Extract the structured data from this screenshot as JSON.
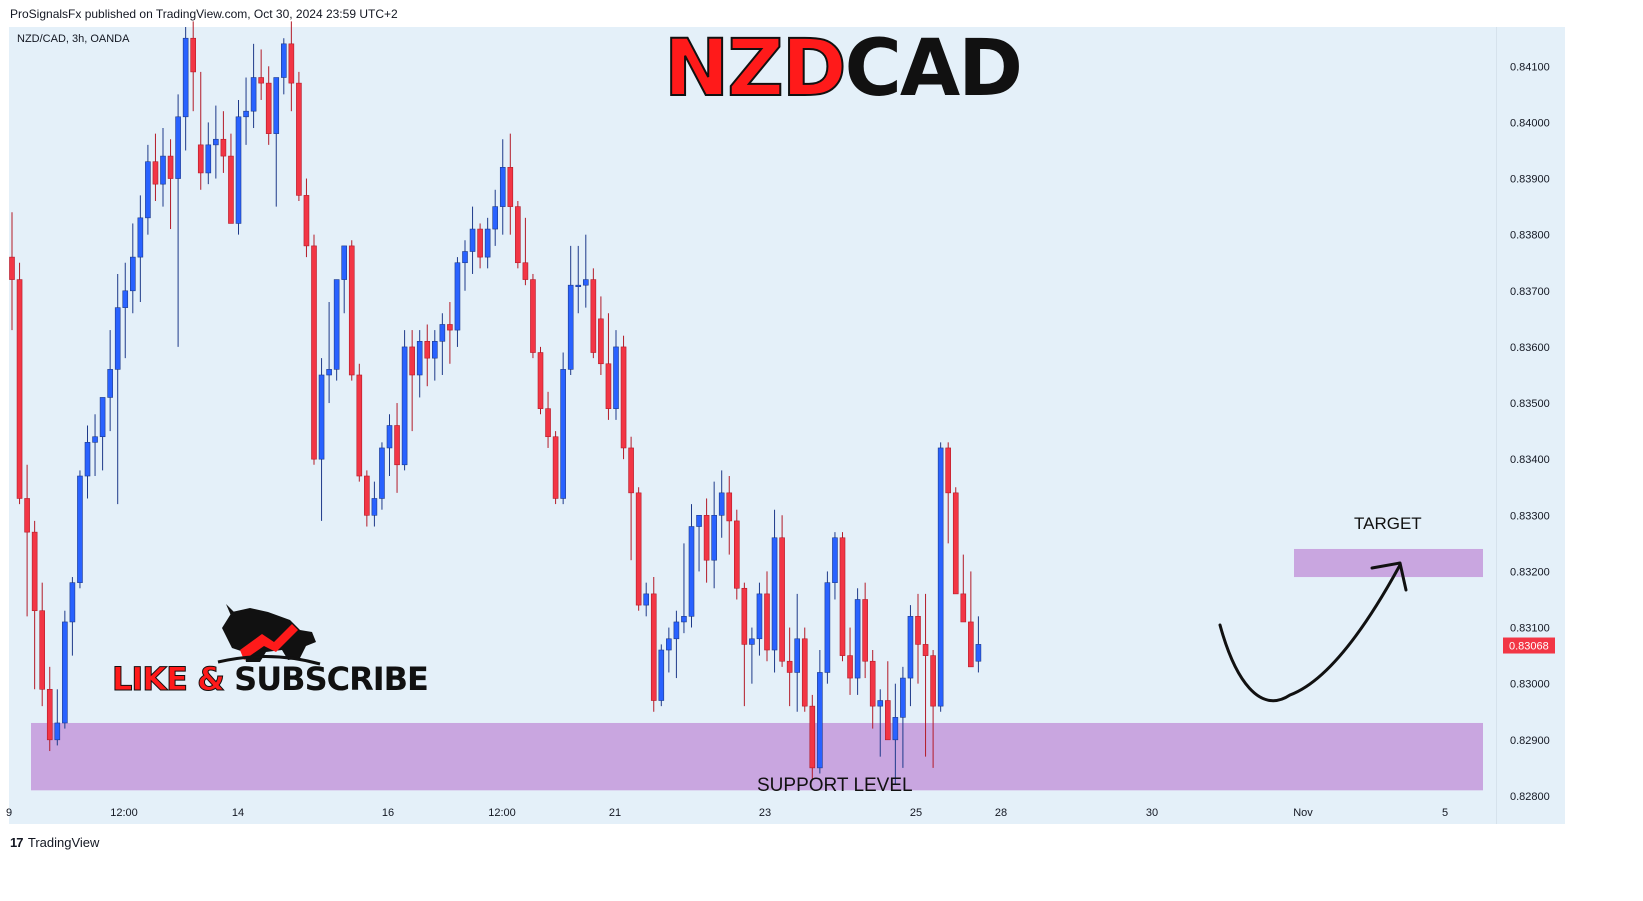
{
  "header": {
    "published": "ProSignalsFx published on TradingView.com, Oct 30, 2024 23:59 UTC+2"
  },
  "symbol_line": "NZD/CAD, 3h, OANDA",
  "title": {
    "part1": "NZD",
    "part2": "CAD"
  },
  "promo": {
    "like": "LIKE &",
    "subscribe": "SUBSCRIBE",
    "logo_icon": "bull-logo-icon"
  },
  "labels": {
    "target": "TARGET",
    "support": "SUPPORT LEVEL"
  },
  "footer": {
    "brand": "TradingView",
    "brand_icon": "tradingview-logo-icon"
  },
  "colors": {
    "up": "#2962ff",
    "down": "#f23645",
    "zone": "#c9a6e0",
    "bg": "#e4f0f9",
    "price_tag": "#f23645"
  },
  "chart_data": {
    "type": "candlestick",
    "timeframe": "3h",
    "ylim": [
      0.8275,
      0.8417
    ],
    "y_ticks": [
      "0.84100",
      "0.84000",
      "0.83900",
      "0.83800",
      "0.83700",
      "0.83600",
      "0.83500",
      "0.83400",
      "0.83300",
      "0.83200",
      "0.83100",
      "0.83000",
      "0.82900",
      "0.82800"
    ],
    "x_ticks": [
      "9",
      "12:00",
      "14",
      "16",
      "12:00",
      "21",
      "23",
      "25",
      "28",
      "30",
      "Nov",
      "5"
    ],
    "current_price": "0.83068",
    "support_zone": [
      0.8281,
      0.8293
    ],
    "target_zone": [
      0.8319,
      0.8324
    ],
    "candles": [
      [
        0.8376,
        0.8384,
        0.8363,
        0.8372
      ],
      [
        0.8372,
        0.8375,
        0.8332,
        0.8333
      ],
      [
        0.8333,
        0.8339,
        0.8312,
        0.8327
      ],
      [
        0.8327,
        0.8329,
        0.8299,
        0.8313
      ],
      [
        0.8313,
        0.8318,
        0.8296,
        0.8299
      ],
      [
        0.8299,
        0.8303,
        0.8288,
        0.829
      ],
      [
        0.829,
        0.8299,
        0.8289,
        0.8293
      ],
      [
        0.8293,
        0.8313,
        0.8292,
        0.8311
      ],
      [
        0.8311,
        0.8319,
        0.8305,
        0.8318
      ],
      [
        0.8318,
        0.8338,
        0.8317,
        0.8337
      ],
      [
        0.8337,
        0.8346,
        0.8333,
        0.8343
      ],
      [
        0.8343,
        0.8348,
        0.8337,
        0.8344
      ],
      [
        0.8344,
        0.8351,
        0.8338,
        0.8351
      ],
      [
        0.8351,
        0.8363,
        0.8345,
        0.8356
      ],
      [
        0.8356,
        0.8373,
        0.8332,
        0.8367
      ],
      [
        0.8367,
        0.8375,
        0.8358,
        0.837
      ],
      [
        0.837,
        0.8382,
        0.8366,
        0.8376
      ],
      [
        0.8376,
        0.8387,
        0.8368,
        0.8383
      ],
      [
        0.8383,
        0.8396,
        0.838,
        0.8393
      ],
      [
        0.8393,
        0.8398,
        0.8386,
        0.8389
      ],
      [
        0.8389,
        0.8399,
        0.8385,
        0.8394
      ],
      [
        0.8394,
        0.8397,
        0.8381,
        0.839
      ],
      [
        0.839,
        0.8405,
        0.836,
        0.8401
      ],
      [
        0.8401,
        0.8417,
        0.8395,
        0.8415
      ],
      [
        0.8415,
        0.8418,
        0.8402,
        0.8409
      ],
      [
        0.8396,
        0.8409,
        0.8388,
        0.8391
      ],
      [
        0.8391,
        0.84,
        0.8389,
        0.8396
      ],
      [
        0.8396,
        0.8403,
        0.839,
        0.8397
      ],
      [
        0.8397,
        0.8402,
        0.8391,
        0.8394
      ],
      [
        0.8394,
        0.8398,
        0.8382,
        0.8382
      ],
      [
        0.8382,
        0.8404,
        0.838,
        0.8401
      ],
      [
        0.8401,
        0.8408,
        0.8396,
        0.8402
      ],
      [
        0.8402,
        0.8414,
        0.8399,
        0.8408
      ],
      [
        0.8408,
        0.8413,
        0.8404,
        0.8407
      ],
      [
        0.8407,
        0.841,
        0.8396,
        0.8398
      ],
      [
        0.8398,
        0.8408,
        0.8385,
        0.8408
      ],
      [
        0.8408,
        0.8415,
        0.8405,
        0.8414
      ],
      [
        0.8414,
        0.8418,
        0.8402,
        0.8407
      ],
      [
        0.8407,
        0.8409,
        0.8386,
        0.8387
      ],
      [
        0.8387,
        0.839,
        0.8376,
        0.8378
      ],
      [
        0.8378,
        0.838,
        0.8339,
        0.834
      ],
      [
        0.834,
        0.8358,
        0.8329,
        0.8355
      ],
      [
        0.8355,
        0.8368,
        0.835,
        0.8356
      ],
      [
        0.8356,
        0.8372,
        0.8354,
        0.8372
      ],
      [
        0.8372,
        0.8378,
        0.8366,
        0.8378
      ],
      [
        0.8378,
        0.8379,
        0.8354,
        0.8355
      ],
      [
        0.8355,
        0.8357,
        0.8336,
        0.8337
      ],
      [
        0.8337,
        0.8338,
        0.8328,
        0.833
      ],
      [
        0.833,
        0.8336,
        0.8328,
        0.8333
      ],
      [
        0.8333,
        0.8343,
        0.8331,
        0.8342
      ],
      [
        0.8342,
        0.8348,
        0.8337,
        0.8346
      ],
      [
        0.8346,
        0.835,
        0.8334,
        0.8339
      ],
      [
        0.8339,
        0.8363,
        0.8338,
        0.836
      ],
      [
        0.836,
        0.8363,
        0.8345,
        0.8355
      ],
      [
        0.8355,
        0.8363,
        0.8351,
        0.8361
      ],
      [
        0.8361,
        0.8364,
        0.8353,
        0.8358
      ],
      [
        0.8358,
        0.8363,
        0.8354,
        0.8361
      ],
      [
        0.8361,
        0.8366,
        0.8355,
        0.8364
      ],
      [
        0.8364,
        0.8368,
        0.8357,
        0.8363
      ],
      [
        0.8363,
        0.8376,
        0.836,
        0.8375
      ],
      [
        0.8375,
        0.8379,
        0.837,
        0.8377
      ],
      [
        0.8377,
        0.8385,
        0.8373,
        0.8381
      ],
      [
        0.8381,
        0.8382,
        0.8374,
        0.8376
      ],
      [
        0.8376,
        0.8383,
        0.8374,
        0.8381
      ],
      [
        0.8381,
        0.8388,
        0.8378,
        0.8385
      ],
      [
        0.8385,
        0.8397,
        0.838,
        0.8392
      ],
      [
        0.8392,
        0.8398,
        0.838,
        0.8385
      ],
      [
        0.8385,
        0.8386,
        0.8374,
        0.8375
      ],
      [
        0.8375,
        0.8383,
        0.8371,
        0.8372
      ],
      [
        0.8372,
        0.8373,
        0.8358,
        0.8359
      ],
      [
        0.8359,
        0.836,
        0.8348,
        0.8349
      ],
      [
        0.8349,
        0.8352,
        0.8342,
        0.8344
      ],
      [
        0.8344,
        0.8345,
        0.8332,
        0.8333
      ],
      [
        0.8333,
        0.8359,
        0.8332,
        0.8356
      ],
      [
        0.8356,
        0.8378,
        0.8355,
        0.8371
      ],
      [
        0.8371,
        0.8378,
        0.8366,
        0.8371
      ],
      [
        0.8371,
        0.838,
        0.8367,
        0.8372
      ],
      [
        0.8372,
        0.8374,
        0.8358,
        0.8359
      ],
      [
        0.8365,
        0.8369,
        0.8355,
        0.8357
      ],
      [
        0.8357,
        0.8366,
        0.8347,
        0.8349
      ],
      [
        0.8349,
        0.8363,
        0.8347,
        0.836
      ],
      [
        0.836,
        0.8362,
        0.834,
        0.8342
      ],
      [
        0.8342,
        0.8344,
        0.8322,
        0.8334
      ],
      [
        0.8334,
        0.8335,
        0.8313,
        0.8314
      ],
      [
        0.8314,
        0.8318,
        0.8312,
        0.8316
      ],
      [
        0.8316,
        0.8319,
        0.8295,
        0.8297
      ],
      [
        0.8297,
        0.8307,
        0.8296,
        0.8306
      ],
      [
        0.8306,
        0.831,
        0.8302,
        0.8308
      ],
      [
        0.8308,
        0.8313,
        0.8301,
        0.8311
      ],
      [
        0.8311,
        0.8325,
        0.8309,
        0.8312
      ],
      [
        0.8312,
        0.8332,
        0.831,
        0.8328
      ],
      [
        0.8328,
        0.833,
        0.832,
        0.833
      ],
      [
        0.833,
        0.8333,
        0.8318,
        0.8322
      ],
      [
        0.8322,
        0.8336,
        0.8317,
        0.833
      ],
      [
        0.833,
        0.8338,
        0.8326,
        0.8334
      ],
      [
        0.8334,
        0.8337,
        0.8323,
        0.8329
      ],
      [
        0.8329,
        0.8331,
        0.8315,
        0.8317
      ],
      [
        0.8317,
        0.8318,
        0.8296,
        0.8307
      ],
      [
        0.8307,
        0.831,
        0.83,
        0.8308
      ],
      [
        0.8308,
        0.8318,
        0.8305,
        0.8316
      ],
      [
        0.8316,
        0.832,
        0.8304,
        0.8306
      ],
      [
        0.8306,
        0.8331,
        0.8302,
        0.8326
      ],
      [
        0.8326,
        0.833,
        0.8303,
        0.8304
      ],
      [
        0.8304,
        0.831,
        0.8296,
        0.8302
      ],
      [
        0.8302,
        0.8316,
        0.8295,
        0.8308
      ],
      [
        0.8308,
        0.831,
        0.8295,
        0.8296
      ],
      [
        0.8296,
        0.8298,
        0.8283,
        0.8285
      ],
      [
        0.8285,
        0.8306,
        0.8284,
        0.8302
      ],
      [
        0.8302,
        0.832,
        0.83,
        0.8318
      ],
      [
        0.8318,
        0.8327,
        0.8315,
        0.8326
      ],
      [
        0.8326,
        0.8327,
        0.8304,
        0.8305
      ],
      [
        0.8305,
        0.831,
        0.8298,
        0.8301
      ],
      [
        0.8301,
        0.8317,
        0.8298,
        0.8315
      ],
      [
        0.8315,
        0.8318,
        0.8301,
        0.8304
      ],
      [
        0.8304,
        0.8306,
        0.8292,
        0.8296
      ],
      [
        0.8296,
        0.8299,
        0.8287,
        0.8297
      ],
      [
        0.8297,
        0.8304,
        0.829,
        0.829
      ],
      [
        0.829,
        0.83,
        0.8282,
        0.8294
      ],
      [
        0.8294,
        0.8303,
        0.8285,
        0.8301
      ],
      [
        0.8301,
        0.8314,
        0.8296,
        0.8312
      ],
      [
        0.8312,
        0.8316,
        0.83,
        0.8307
      ],
      [
        0.8307,
        0.8316,
        0.8287,
        0.8305
      ],
      [
        0.8305,
        0.8306,
        0.8285,
        0.8296
      ],
      [
        0.8296,
        0.8343,
        0.8295,
        0.8342
      ],
      [
        0.8342,
        0.8343,
        0.8325,
        0.8334
      ],
      [
        0.8334,
        0.8335,
        0.8316,
        0.8316
      ],
      [
        0.8316,
        0.8323,
        0.8312,
        0.8311
      ],
      [
        0.8311,
        0.832,
        0.8303,
        0.8303
      ],
      [
        0.8304,
        0.8312,
        0.8302,
        0.8307
      ]
    ]
  }
}
